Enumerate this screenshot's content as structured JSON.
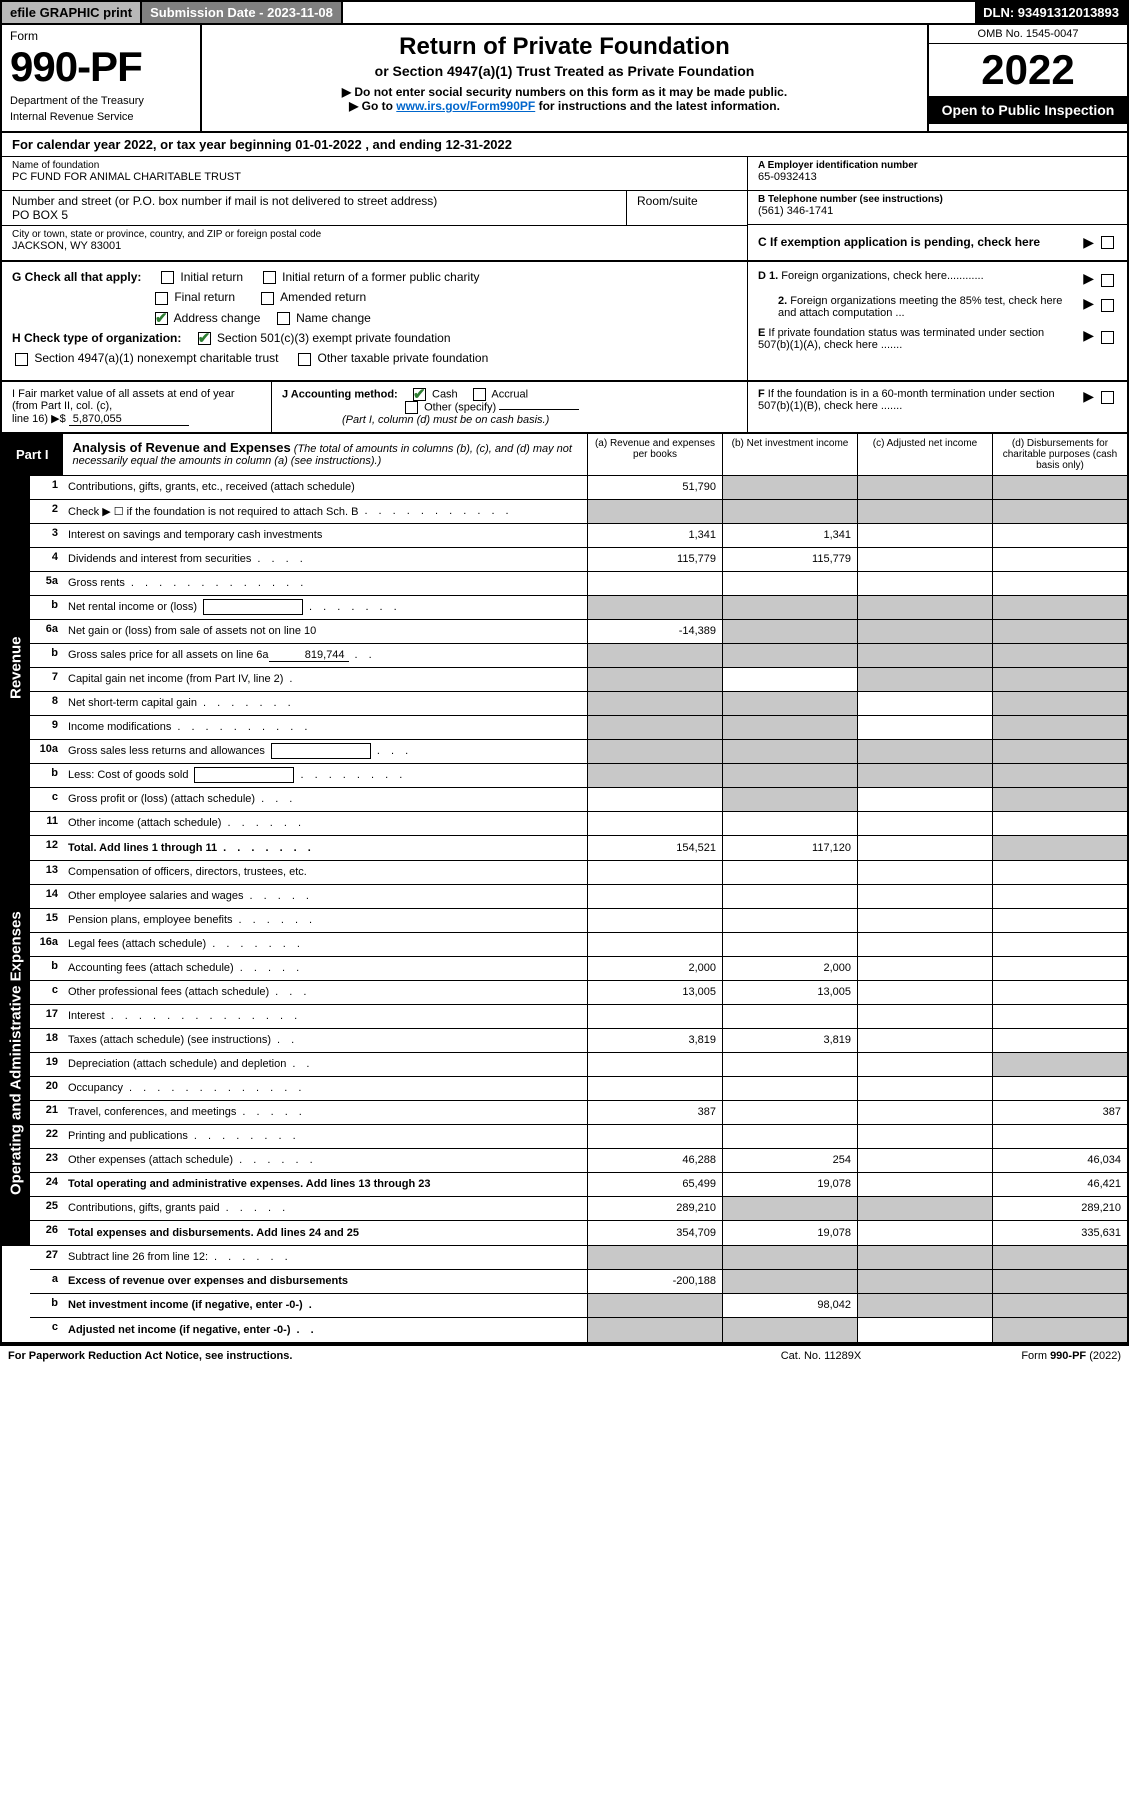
{
  "top": {
    "efile": "efile GRAPHIC print",
    "subdate_label": "Submission Date - 2023-11-08",
    "dln": "DLN: 93491312013893"
  },
  "header": {
    "form_word": "Form",
    "form_num": "990-PF",
    "dept": "Department of the Treasury",
    "irs": "Internal Revenue Service",
    "title": "Return of Private Foundation",
    "subtitle": "or Section 4947(a)(1) Trust Treated as Private Foundation",
    "instr1": "▶ Do not enter social security numbers on this form as it may be made public.",
    "instr2_pre": "▶ Go to ",
    "instr2_link": "www.irs.gov/Form990PF",
    "instr2_post": " for instructions and the latest information.",
    "omb": "OMB No. 1545-0047",
    "year": "2022",
    "open": "Open to Public Inspection"
  },
  "calyear": "For calendar year 2022, or tax year beginning 01-01-2022            , and ending 12-31-2022",
  "info": {
    "name_lbl": "Name of foundation",
    "name": "PC FUND FOR ANIMAL CHARITABLE TRUST",
    "addr_lbl": "Number and street (or P.O. box number if mail is not delivered to street address)",
    "addr": "PO BOX 5",
    "room_lbl": "Room/suite",
    "city_lbl": "City or town, state or province, country, and ZIP or foreign postal code",
    "city": "JACKSON, WY  83001",
    "a_lbl": "A Employer identification number",
    "a_val": "65-0932413",
    "b_lbl": "B Telephone number (see instructions)",
    "b_val": "(561) 346-1741",
    "c_lbl": "C If exemption application is pending, check here"
  },
  "checks": {
    "g_lbl": "G Check all that apply:",
    "g_opts": [
      "Initial return",
      "Initial return of a former public charity",
      "Final return",
      "Amended return",
      "Address change",
      "Name change"
    ],
    "h_lbl": "H Check type of organization:",
    "h1": "Section 501(c)(3) exempt private foundation",
    "h2": "Section 4947(a)(1) nonexempt charitable trust",
    "h3": "Other taxable private foundation",
    "d1": "D 1. Foreign organizations, check here............",
    "d2": "2. Foreign organizations meeting the 85% test, check here and attach computation ...",
    "e": "E  If private foundation status was terminated under section 507(b)(1)(A), check here .......",
    "f": "F  If the foundation is in a 60-month termination under section 507(b)(1)(B), check here ......."
  },
  "hij": {
    "i1": "I Fair market value of all assets at end of year (from Part II, col. (c),",
    "i2_pre": "line 16) ▶$ ",
    "i2_val": "5,870,055",
    "j_lbl": "J Accounting method:",
    "j_cash": "Cash",
    "j_acc": "Accrual",
    "j_other": "Other (specify)",
    "j_note": "(Part I, column (d) must be on cash basis.)"
  },
  "part1": {
    "tab": "Part I",
    "title": "Analysis of Revenue and Expenses",
    "note": " (The total of amounts in columns (b), (c), and (d) may not necessarily equal the amounts in column (a) (see instructions).)",
    "cols": {
      "a": "(a)  Revenue and expenses per books",
      "b": "(b)  Net investment income",
      "c": "(c)  Adjusted net income",
      "d": "(d)  Disbursements for charitable purposes (cash basis only)"
    }
  },
  "vtabs": {
    "rev": "Revenue",
    "exp": "Operating and Administrative Expenses"
  },
  "rows": [
    {
      "n": "1",
      "d": "Contributions, gifts, grants, etc., received (attach schedule)",
      "a": "51,790",
      "shade": [
        "b",
        "c",
        "d"
      ]
    },
    {
      "n": "2",
      "d": "Check ▶ ☐ if the foundation is not required to attach Sch. B",
      "shade": [
        "a",
        "b",
        "c",
        "d"
      ],
      "dotsOnly": true
    },
    {
      "n": "3",
      "d": "Interest on savings and temporary cash investments",
      "a": "1,341",
      "b": "1,341"
    },
    {
      "n": "4",
      "d": "Dividends and interest from securities",
      "a": "115,779",
      "b": "115,779"
    },
    {
      "n": "5a",
      "d": "Gross rents"
    },
    {
      "n": "b",
      "d": "Net rental income or (loss)",
      "inlineBox": "",
      "shade": [
        "a",
        "b",
        "c",
        "d"
      ]
    },
    {
      "n": "6a",
      "d": "Net gain or (loss) from sale of assets not on line 10",
      "a": "-14,389",
      "shade": [
        "b",
        "c",
        "d"
      ]
    },
    {
      "n": "b",
      "d": "Gross sales price for all assets on line 6a",
      "inlineUnderline": "819,744",
      "shade": [
        "a",
        "b",
        "c",
        "d"
      ]
    },
    {
      "n": "7",
      "d": "Capital gain net income (from Part IV, line 2)",
      "shade": [
        "a",
        "c",
        "d"
      ]
    },
    {
      "n": "8",
      "d": "Net short-term capital gain",
      "shade": [
        "a",
        "b",
        "d"
      ]
    },
    {
      "n": "9",
      "d": "Income modifications",
      "shade": [
        "a",
        "b",
        "d"
      ]
    },
    {
      "n": "10a",
      "d": "Gross sales less returns and allowances",
      "inlineBox": "",
      "shade": [
        "a",
        "b",
        "c",
        "d"
      ]
    },
    {
      "n": "b",
      "d": "Less: Cost of goods sold",
      "inlineBox": "",
      "shade": [
        "a",
        "b",
        "c",
        "d"
      ]
    },
    {
      "n": "c",
      "d": "Gross profit or (loss) (attach schedule)",
      "shade": [
        "b",
        "d"
      ]
    },
    {
      "n": "11",
      "d": "Other income (attach schedule)"
    },
    {
      "n": "12",
      "d": "Total. Add lines 1 through 11",
      "bold": true,
      "a": "154,521",
      "b": "117,120",
      "shade": [
        "d"
      ]
    }
  ],
  "rows2": [
    {
      "n": "13",
      "d": "Compensation of officers, directors, trustees, etc."
    },
    {
      "n": "14",
      "d": "Other employee salaries and wages"
    },
    {
      "n": "15",
      "d": "Pension plans, employee benefits"
    },
    {
      "n": "16a",
      "d": "Legal fees (attach schedule)"
    },
    {
      "n": "b",
      "d": "Accounting fees (attach schedule)",
      "a": "2,000",
      "b": "2,000"
    },
    {
      "n": "c",
      "d": "Other professional fees (attach schedule)",
      "a": "13,005",
      "b": "13,005"
    },
    {
      "n": "17",
      "d": "Interest"
    },
    {
      "n": "18",
      "d": "Taxes (attach schedule) (see instructions)",
      "a": "3,819",
      "b": "3,819"
    },
    {
      "n": "19",
      "d": "Depreciation (attach schedule) and depletion",
      "shade": [
        "d"
      ]
    },
    {
      "n": "20",
      "d": "Occupancy"
    },
    {
      "n": "21",
      "d": "Travel, conferences, and meetings",
      "a": "387",
      "dcol": "387"
    },
    {
      "n": "22",
      "d": "Printing and publications"
    },
    {
      "n": "23",
      "d": "Other expenses (attach schedule)",
      "a": "46,288",
      "b": "254",
      "dcol": "46,034"
    },
    {
      "n": "24",
      "d": "Total operating and administrative expenses. Add lines 13 through 23",
      "bold": true,
      "a": "65,499",
      "b": "19,078",
      "dcol": "46,421"
    },
    {
      "n": "25",
      "d": "Contributions, gifts, grants paid",
      "a": "289,210",
      "shade": [
        "b",
        "c"
      ],
      "dcol": "289,210"
    },
    {
      "n": "26",
      "d": "Total expenses and disbursements. Add lines 24 and 25",
      "bold": true,
      "a": "354,709",
      "b": "19,078",
      "dcol": "335,631"
    }
  ],
  "rows3": [
    {
      "n": "27",
      "d": "Subtract line 26 from line 12:",
      "shade": [
        "a",
        "b",
        "c",
        "d"
      ]
    },
    {
      "n": "a",
      "d": "Excess of revenue over expenses and disbursements",
      "bold": true,
      "a": "-200,188",
      "shade": [
        "b",
        "c",
        "d"
      ]
    },
    {
      "n": "b",
      "d": "Net investment income (if negative, enter -0-)",
      "bold": true,
      "b": "98,042",
      "shade": [
        "a",
        "c",
        "d"
      ]
    },
    {
      "n": "c",
      "d": "Adjusted net income (if negative, enter -0-)",
      "bold": true,
      "shade": [
        "a",
        "b",
        "d"
      ]
    }
  ],
  "footer": {
    "left": "For Paperwork Reduction Act Notice, see instructions.",
    "mid": "Cat. No. 11289X",
    "right": "Form 990-PF (2022)"
  }
}
